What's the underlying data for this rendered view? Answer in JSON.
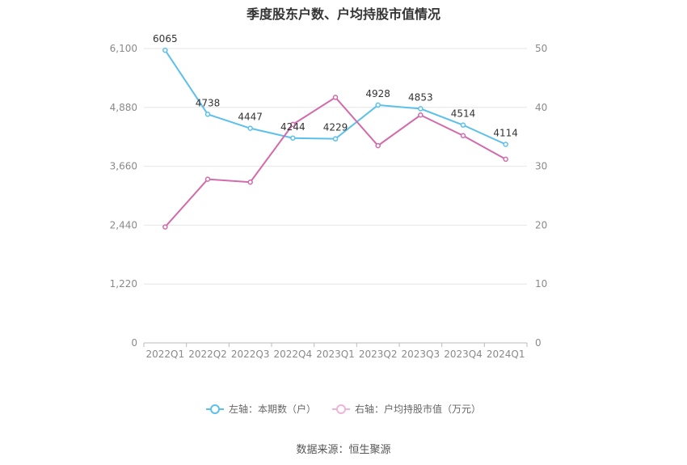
{
  "chart_data": {
    "type": "line",
    "title": "季度股东户数、户均持股市值情况",
    "categories": [
      "2022Q1",
      "2022Q2",
      "2022Q3",
      "2022Q4",
      "2023Q1",
      "2023Q2",
      "2023Q3",
      "2023Q4",
      "2024Q1"
    ],
    "left_axis": {
      "ticks": [
        "0",
        "1,220",
        "2,440",
        "3,660",
        "4,880",
        "6,100"
      ],
      "ylim": [
        0,
        6100
      ]
    },
    "right_axis": {
      "ticks": [
        "0",
        "10",
        "20",
        "30",
        "40",
        "50"
      ],
      "ylim": [
        0,
        50
      ]
    },
    "grid": true,
    "legend_position": "bottom",
    "series": [
      {
        "name": "左轴：本期数（户）",
        "axis": "left",
        "color": "#5bc0eb",
        "values": [
          6065,
          4738,
          4447,
          4244,
          4229,
          4928,
          4853,
          4514,
          4114
        ],
        "labels": [
          "6065",
          "4738",
          "4447",
          "4244",
          "4229",
          "4928",
          "4853",
          "4514",
          "4114"
        ]
      },
      {
        "name": "右轴：户均持股市值（万元）",
        "axis": "right",
        "color": "#d36aaa",
        "values": [
          19.7,
          27.8,
          27.3,
          37.1,
          41.7,
          33.5,
          38.7,
          35.2,
          31.2
        ]
      }
    ]
  },
  "source": "数据来源：恒生聚源"
}
